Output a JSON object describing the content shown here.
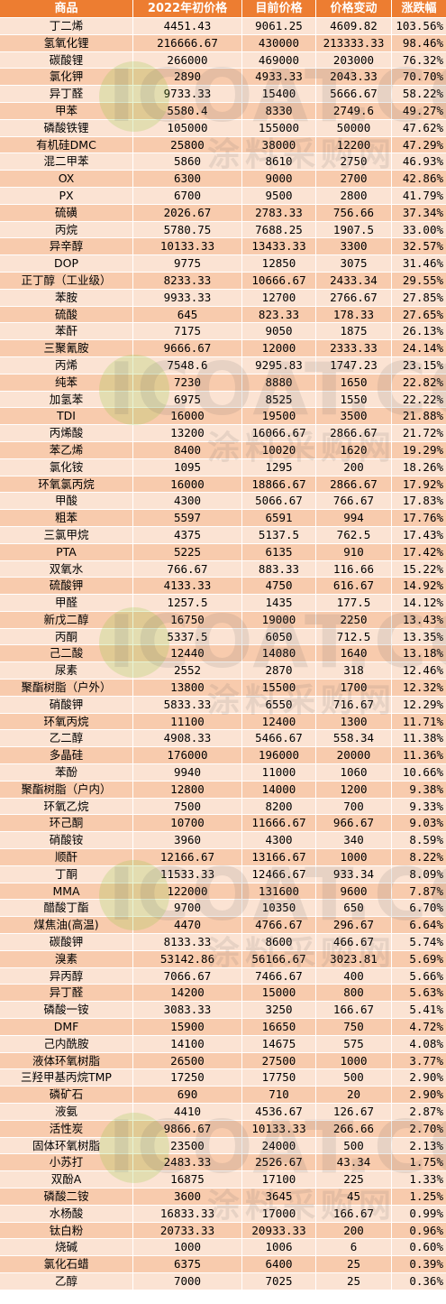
{
  "header": [
    "商品",
    "2022年初价格",
    "目前价格",
    "价格变动",
    "涨跌幅"
  ],
  "rows": [
    [
      "丁二烯",
      "4451.43",
      "9061.25",
      "4609.82",
      "103.56%"
    ],
    [
      "氢氧化锂",
      "216666.67",
      "430000",
      "213333.33",
      "98.46%"
    ],
    [
      "碳酸锂",
      "266000",
      "469000",
      "203000",
      "76.32%"
    ],
    [
      "氯化钾",
      "2890",
      "4933.33",
      "2043.33",
      "70.70%"
    ],
    [
      "异丁醛",
      "9733.33",
      "15400",
      "5666.67",
      "58.22%"
    ],
    [
      "甲苯",
      "5580.4",
      "8330",
      "2749.6",
      "49.27%"
    ],
    [
      "磷酸铁锂",
      "105000",
      "155000",
      "50000",
      "47.62%"
    ],
    [
      "有机硅DMC",
      "25800",
      "38000",
      "12200",
      "47.29%"
    ],
    [
      "混二甲苯",
      "5860",
      "8610",
      "2750",
      "46.93%"
    ],
    [
      "OX",
      "6300",
      "9000",
      "2700",
      "42.86%"
    ],
    [
      "PX",
      "6700",
      "9500",
      "2800",
      "41.79%"
    ],
    [
      "硫磺",
      "2026.67",
      "2783.33",
      "756.66",
      "37.34%"
    ],
    [
      "丙烷",
      "5780.75",
      "7688.25",
      "1907.5",
      "33.00%"
    ],
    [
      "异辛醇",
      "10133.33",
      "13433.33",
      "3300",
      "32.57%"
    ],
    [
      "DOP",
      "9775",
      "12850",
      "3075",
      "31.46%"
    ],
    [
      "正丁醇（工业级）",
      "8233.33",
      "10666.67",
      "2433.34",
      "29.55%"
    ],
    [
      "苯胺",
      "9933.33",
      "12700",
      "2766.67",
      "27.85%"
    ],
    [
      "硫酸",
      "645",
      "823.33",
      "178.33",
      "27.65%"
    ],
    [
      "苯酐",
      "7175",
      "9050",
      "1875",
      "26.13%"
    ],
    [
      "三聚氰胺",
      "9666.67",
      "12000",
      "2333.33",
      "24.14%"
    ],
    [
      "丙烯",
      "7548.6",
      "9295.83",
      "1747.23",
      "23.15%"
    ],
    [
      "纯苯",
      "7230",
      "8880",
      "1650",
      "22.82%"
    ],
    [
      "加氢苯",
      "6975",
      "8525",
      "1550",
      "22.22%"
    ],
    [
      "TDI",
      "16000",
      "19500",
      "3500",
      "21.88%"
    ],
    [
      "丙烯酸",
      "13200",
      "16066.67",
      "2866.67",
      "21.72%"
    ],
    [
      "苯乙烯",
      "8400",
      "10020",
      "1620",
      "19.29%"
    ],
    [
      "氯化铵",
      "1095",
      "1295",
      "200",
      "18.26%"
    ],
    [
      "环氧氯丙烷",
      "16000",
      "18866.67",
      "2866.67",
      "17.92%"
    ],
    [
      "甲酸",
      "4300",
      "5066.67",
      "766.67",
      "17.83%"
    ],
    [
      "粗苯",
      "5597",
      "6591",
      "994",
      "17.76%"
    ],
    [
      "三氯甲烷",
      "4375",
      "5137.5",
      "762.5",
      "17.43%"
    ],
    [
      "PTA",
      "5225",
      "6135",
      "910",
      "17.42%"
    ],
    [
      "双氧水",
      "766.67",
      "883.33",
      "116.66",
      "15.22%"
    ],
    [
      "硫酸钾",
      "4133.33",
      "4750",
      "616.67",
      "14.92%"
    ],
    [
      "甲醛",
      "1257.5",
      "1435",
      "177.5",
      "14.12%"
    ],
    [
      "新戊二醇",
      "16750",
      "19000",
      "2250",
      "13.43%"
    ],
    [
      "丙酮",
      "5337.5",
      "6050",
      "712.5",
      "13.35%"
    ],
    [
      "己二酸",
      "12440",
      "14080",
      "1640",
      "13.18%"
    ],
    [
      "尿素",
      "2552",
      "2870",
      "318",
      "12.46%"
    ],
    [
      "聚酯树脂（户外）",
      "13800",
      "15500",
      "1700",
      "12.32%"
    ],
    [
      "硝酸钾",
      "5833.33",
      "6550",
      "716.67",
      "12.29%"
    ],
    [
      "环氧丙烷",
      "11100",
      "12400",
      "1300",
      "11.71%"
    ],
    [
      "乙二醇",
      "4908.33",
      "5466.67",
      "558.34",
      "11.38%"
    ],
    [
      "多晶硅",
      "176000",
      "196000",
      "20000",
      "11.36%"
    ],
    [
      "苯酚",
      "9940",
      "11000",
      "1060",
      "10.66%"
    ],
    [
      "聚酯树脂（户内）",
      "12800",
      "14000",
      "1200",
      "9.38%"
    ],
    [
      "环氧乙烷",
      "7500",
      "8200",
      "700",
      "9.33%"
    ],
    [
      "环己酮",
      "10700",
      "11666.67",
      "966.67",
      "9.03%"
    ],
    [
      "硝酸铵",
      "3960",
      "4300",
      "340",
      "8.59%"
    ],
    [
      "顺酐",
      "12166.67",
      "13166.67",
      "1000",
      "8.22%"
    ],
    [
      "丁酮",
      "11533.33",
      "12466.67",
      "933.34",
      "8.09%"
    ],
    [
      "MMA",
      "122000",
      "131600",
      "9600",
      "7.87%"
    ],
    [
      "醋酸丁酯",
      "9700",
      "10350",
      "650",
      "6.70%"
    ],
    [
      "煤焦油(高温)",
      "4470",
      "4766.67",
      "296.67",
      "6.64%"
    ],
    [
      "碳酸钾",
      "8133.33",
      "8600",
      "466.67",
      "5.74%"
    ],
    [
      "溴素",
      "53142.86",
      "56166.67",
      "3023.81",
      "5.69%"
    ],
    [
      "异丙醇",
      "7066.67",
      "7466.67",
      "400",
      "5.66%"
    ],
    [
      "异丁醛",
      "14200",
      "15000",
      "800",
      "5.63%"
    ],
    [
      "磷酸一铵",
      "3083.33",
      "3250",
      "166.67",
      "5.41%"
    ],
    [
      "DMF",
      "15900",
      "16650",
      "750",
      "4.72%"
    ],
    [
      "己内酰胺",
      "14100",
      "14675",
      "575",
      "4.08%"
    ],
    [
      "液体环氧树脂",
      "26500",
      "27500",
      "1000",
      "3.77%"
    ],
    [
      "三羟甲基丙烷TMP",
      "17250",
      "17750",
      "500",
      "2.90%"
    ],
    [
      "磷矿石",
      "690",
      "710",
      "20",
      "2.90%"
    ],
    [
      "液氨",
      "4410",
      "4536.67",
      "126.67",
      "2.87%"
    ],
    [
      "活性炭",
      "9866.67",
      "10133.33",
      "266.66",
      "2.70%"
    ],
    [
      "固体环氧树脂",
      "23500",
      "24000",
      "500",
      "2.13%"
    ],
    [
      "小苏打",
      "2483.33",
      "2526.67",
      "43.34",
      "1.75%"
    ],
    [
      "双酚A",
      "16875",
      "17100",
      "225",
      "1.33%"
    ],
    [
      "磷酸二铵",
      "3600",
      "3645",
      "45",
      "1.25%"
    ],
    [
      "水杨酸",
      "16833.33",
      "17000",
      "166.67",
      "0.99%"
    ],
    [
      "钛白粉",
      "20733.33",
      "20933.33",
      "200",
      "0.96%"
    ],
    [
      "烧碱",
      "1000",
      "1006",
      "6",
      "0.60%"
    ],
    [
      "氯化石蜡",
      "6375",
      "6400",
      "25",
      "0.39%"
    ],
    [
      "乙醇",
      "7000",
      "7025",
      "25",
      "0.36%"
    ]
  ],
  "watermark": {
    "brand": "ICOAT.CC",
    "chinese": "涂料采购网"
  }
}
